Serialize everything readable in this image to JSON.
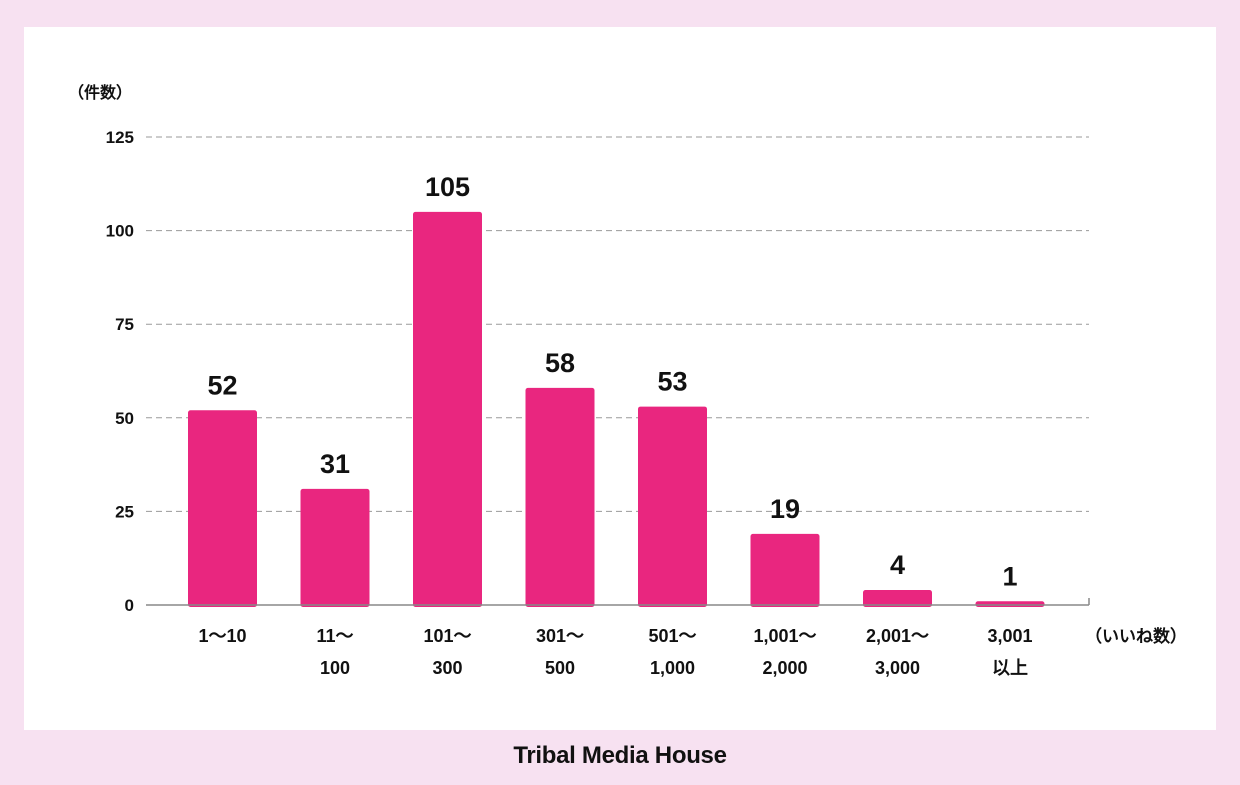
{
  "chart_data": {
    "type": "bar",
    "categories": [
      [
        "1〜10"
      ],
      [
        "11〜",
        "100"
      ],
      [
        "101〜",
        "300"
      ],
      [
        "301〜",
        "500"
      ],
      [
        "501〜",
        "1,000"
      ],
      [
        "1,001〜",
        "2,000"
      ],
      [
        "2,001〜",
        "3,000"
      ],
      [
        "3,001",
        "以上"
      ]
    ],
    "values": [
      52,
      31,
      105,
      58,
      53,
      19,
      4,
      1
    ],
    "data_labels": [
      "52",
      "31",
      "105",
      "58",
      "53",
      "19",
      "4",
      "1"
    ],
    "ylabel": "（件数）",
    "xlabel": "（いいね数）",
    "ylim": [
      0,
      125
    ],
    "yticks": [
      0,
      25,
      50,
      75,
      100,
      125
    ],
    "grid": true,
    "bar_color": "#e9267f"
  },
  "footer": {
    "brand": "Tribal Media House"
  }
}
